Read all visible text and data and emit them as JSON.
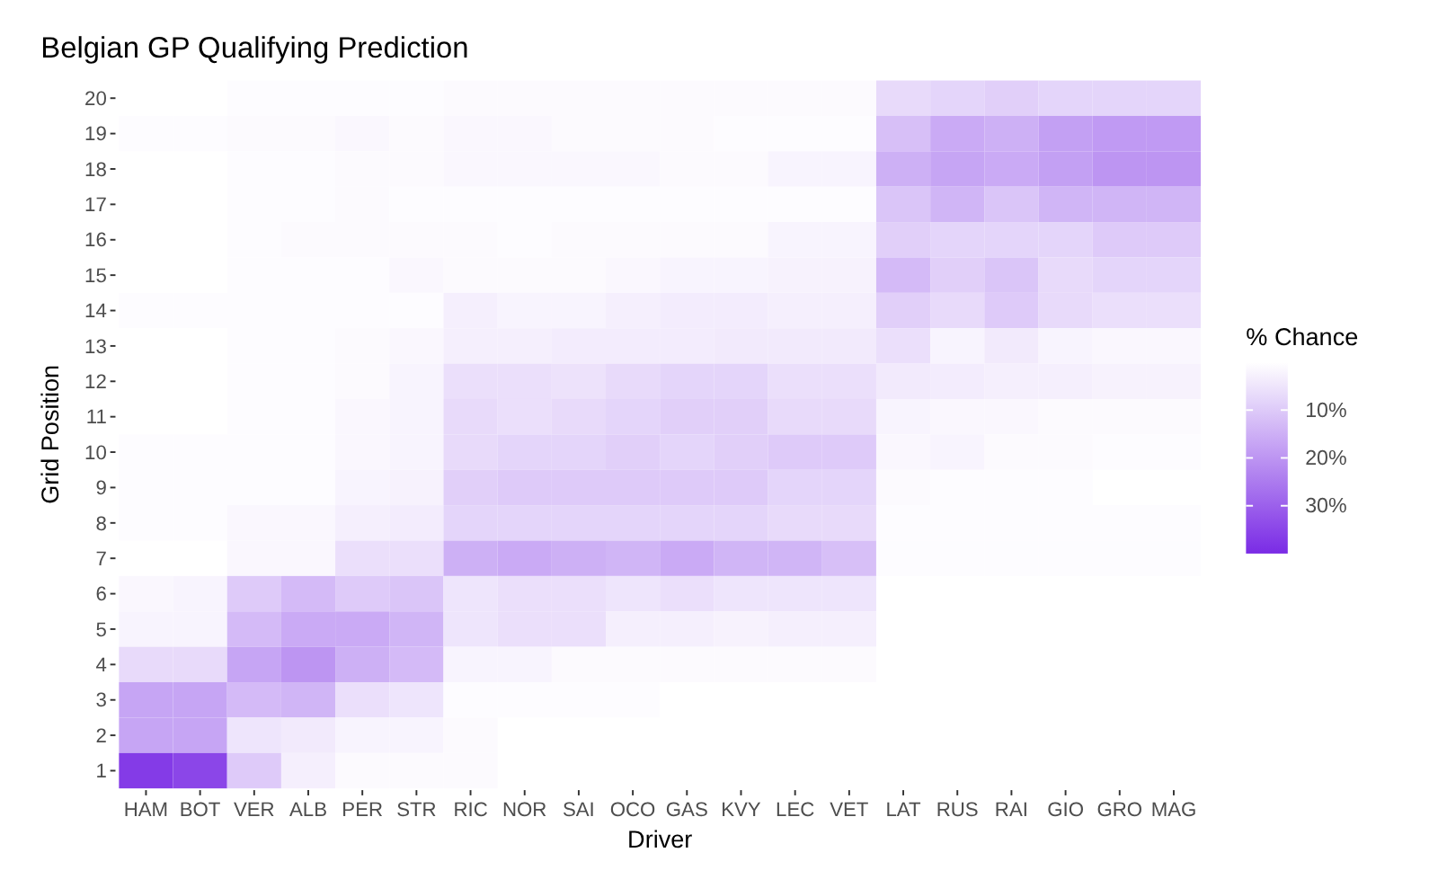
{
  "chart_data": {
    "type": "heatmap",
    "title": "Belgian GP Qualifying Prediction",
    "xlabel": "Driver",
    "ylabel": "Grid Position",
    "legend_title": "% Chance",
    "grid": false,
    "categories": [
      "HAM",
      "BOT",
      "VER",
      "ALB",
      "PER",
      "STR",
      "RIC",
      "NOR",
      "SAI",
      "OCO",
      "GAS",
      "KVY",
      "LEC",
      "VET",
      "LAT",
      "RUS",
      "RAI",
      "GIO",
      "GRO",
      "MAG"
    ],
    "y_categories": [
      "20",
      "19",
      "18",
      "17",
      "16",
      "15",
      "14",
      "13",
      "12",
      "11",
      "10",
      "9",
      "8",
      "7",
      "6",
      "5",
      "4",
      "3",
      "2",
      "1"
    ],
    "cells": [
      [
        null,
        null,
        0.5,
        0.5,
        0.5,
        0.5,
        1,
        1,
        1,
        1,
        1,
        1,
        1,
        1,
        7,
        8,
        9,
        8,
        8,
        8
      ],
      [
        0.5,
        0.5,
        1,
        1,
        1.5,
        1,
        1.5,
        1.5,
        1,
        1,
        1,
        0.5,
        0.5,
        0.5,
        12,
        16,
        15,
        18,
        19,
        19
      ],
      [
        null,
        null,
        0.5,
        0.5,
        1,
        1,
        1.5,
        1.5,
        1.5,
        1.5,
        1,
        1,
        2,
        2,
        15,
        17,
        16,
        18,
        20,
        20
      ],
      [
        null,
        null,
        0.5,
        0.5,
        1,
        0.5,
        0.5,
        0.5,
        0.5,
        0.5,
        0.5,
        0.5,
        0.5,
        0.5,
        11,
        14,
        11,
        14,
        14,
        14
      ],
      [
        null,
        null,
        0.5,
        1,
        1,
        1,
        1,
        0.5,
        1,
        1,
        1,
        1,
        2,
        2,
        9,
        8,
        8,
        8,
        10,
        10
      ],
      [
        null,
        null,
        0.5,
        0.5,
        0.5,
        1.5,
        1,
        1,
        1,
        1.5,
        2,
        2,
        2.5,
        2.5,
        13,
        9,
        11,
        7,
        8,
        8
      ],
      [
        0.5,
        0.5,
        0.5,
        0.5,
        0.5,
        0.5,
        3,
        2,
        2,
        3,
        3.5,
        3.5,
        3,
        3,
        9,
        7,
        10,
        7,
        6,
        6
      ],
      [
        null,
        null,
        0.5,
        0.5,
        1,
        1.5,
        3,
        3,
        3.5,
        3.5,
        3.5,
        4,
        4,
        4,
        6,
        2,
        4,
        2,
        1.5,
        1.5
      ],
      [
        null,
        null,
        0.5,
        0.5,
        1,
        2,
        6,
        6,
        5.5,
        7,
        8,
        8,
        6,
        6,
        4,
        3.5,
        3,
        3,
        2.5,
        2.5
      ],
      [
        null,
        null,
        0.5,
        0.5,
        1.5,
        2,
        7,
        6,
        7,
        8,
        9,
        9,
        7,
        7,
        2,
        1.5,
        1.5,
        1,
        1,
        1
      ],
      [
        0.5,
        0.5,
        0.5,
        0.5,
        1.5,
        2,
        7,
        8,
        8,
        9,
        8,
        9,
        10,
        10,
        1.5,
        2,
        1,
        1,
        0.5,
        0.5
      ],
      [
        0.5,
        0.5,
        0.5,
        0.5,
        2,
        2.5,
        9,
        10,
        10,
        10,
        10,
        10,
        8,
        8,
        1,
        0.5,
        0.5,
        0.5,
        null,
        null
      ],
      [
        0.5,
        0.5,
        1.5,
        1.5,
        3,
        3.5,
        8,
        8,
        8,
        8,
        8,
        8,
        7,
        7,
        0.5,
        0.5,
        0.5,
        0.5,
        0.5,
        0.5
      ],
      [
        null,
        null,
        1.5,
        1.5,
        6,
        6,
        15,
        16,
        15,
        14,
        16,
        14,
        14,
        12,
        0.5,
        0.5,
        0.5,
        0.5,
        0.5,
        0.5
      ],
      [
        1.5,
        2,
        10,
        13,
        10,
        11,
        5,
        6,
        6,
        5,
        6,
        5,
        5,
        5,
        null,
        null,
        null,
        null,
        null,
        null
      ],
      [
        2,
        2,
        13,
        16,
        16,
        14,
        5,
        6,
        6,
        3,
        3,
        2.5,
        3,
        3,
        null,
        null,
        null,
        null,
        null,
        null
      ],
      [
        7,
        7,
        17,
        20,
        15,
        13,
        2,
        2,
        1,
        1,
        1,
        1,
        1,
        1,
        null,
        null,
        null,
        null,
        null,
        null
      ],
      [
        17,
        17,
        13,
        14,
        6,
        5,
        0.5,
        0.5,
        0.5,
        0.5,
        null,
        null,
        null,
        null,
        null,
        null,
        null,
        null,
        null,
        null
      ],
      [
        17,
        17,
        5,
        4,
        2,
        2,
        1,
        null,
        null,
        null,
        null,
        null,
        null,
        null,
        null,
        null,
        null,
        null,
        null,
        null
      ],
      [
        37,
        35,
        10,
        3,
        1,
        1,
        1,
        null,
        null,
        null,
        null,
        null,
        null,
        null,
        null,
        null,
        null,
        null,
        null,
        null
      ]
    ],
    "clim": [
      0,
      40
    ],
    "cticks": [
      {
        "value": 10,
        "label": "10%"
      },
      {
        "value": 20,
        "label": "20%"
      },
      {
        "value": 30,
        "label": "30%"
      }
    ]
  }
}
